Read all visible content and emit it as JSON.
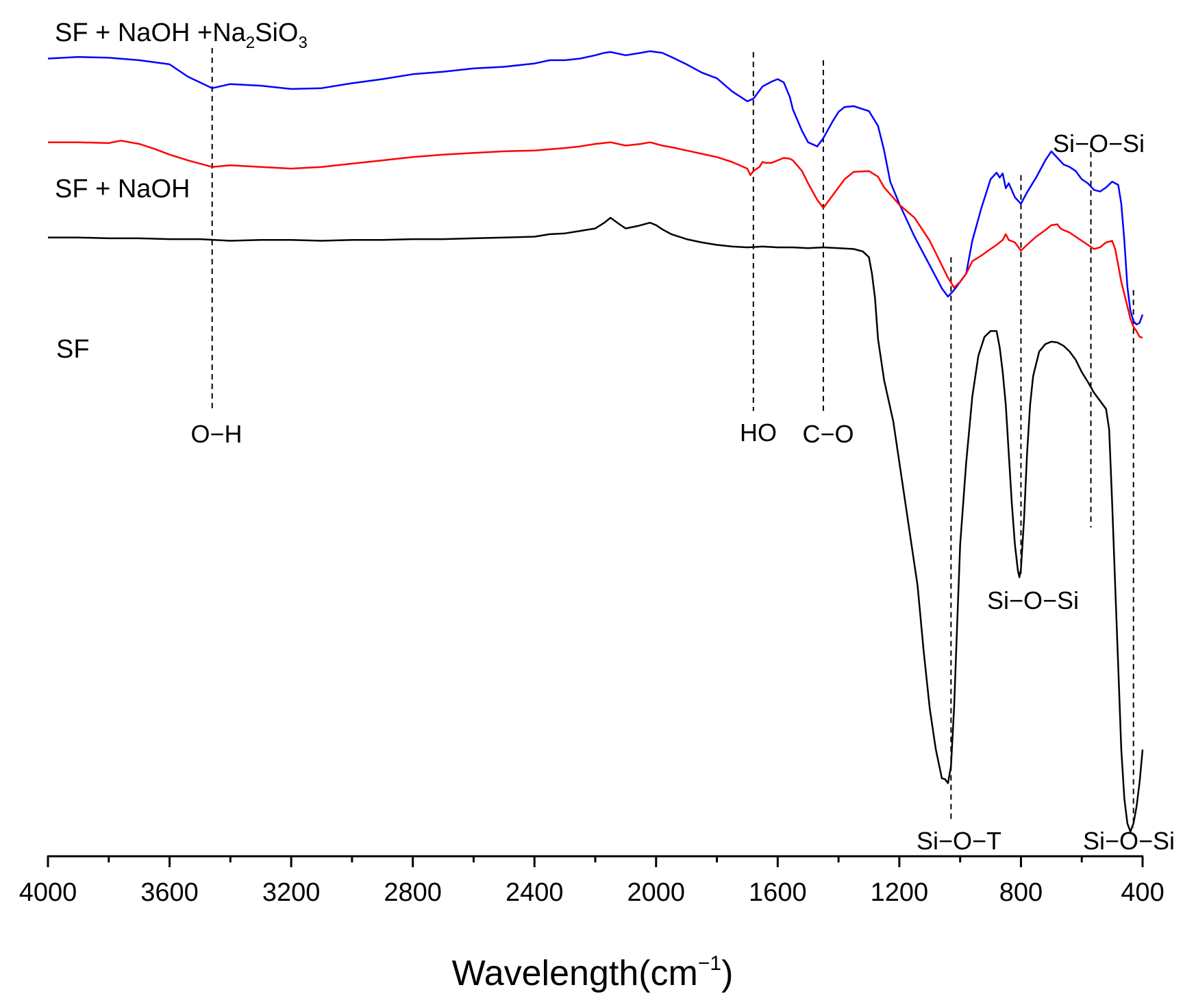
{
  "chart_data": {
    "type": "line",
    "title": "",
    "xlabel": "Wavelength(cm",
    "xlabel_superscript": "−1",
    "xlabel_close": ")",
    "ylabel": "",
    "xlim": [
      4000,
      400
    ],
    "x_reversed": true,
    "ylim": [
      -13,
      88
    ],
    "y_axis_shown": false,
    "grid": false,
    "xticks": [
      4000,
      3600,
      3200,
      2800,
      2400,
      2000,
      1600,
      1200,
      800,
      400
    ],
    "xtick_labels": [
      "4000",
      "3600",
      "3200",
      "2800",
      "2400",
      "2000",
      "1600",
      "1200",
      "800",
      "400"
    ],
    "minor_xticks": [
      3800,
      3400,
      3000,
      2600,
      2200,
      1800,
      1400,
      1000,
      600
    ],
    "series": [
      {
        "name": "SF + NaOH +Na2SiO3",
        "label_parts": [
          "SF + NaOH +Na",
          "2",
          "SiO",
          "3"
        ],
        "color": "#0000ff",
        "x": [
          4000,
          3900,
          3800,
          3700,
          3600,
          3540,
          3460,
          3400,
          3300,
          3200,
          3100,
          3000,
          2900,
          2800,
          2700,
          2600,
          2500,
          2400,
          2350,
          2300,
          2250,
          2200,
          2170,
          2150,
          2100,
          2050,
          2020,
          1980,
          1950,
          1900,
          1850,
          1800,
          1750,
          1700,
          1680,
          1650,
          1620,
          1600,
          1580,
          1560,
          1550,
          1520,
          1500,
          1470,
          1450,
          1420,
          1400,
          1380,
          1350,
          1300,
          1270,
          1250,
          1230,
          1200,
          1150,
          1100,
          1060,
          1040,
          1020,
          1000,
          980,
          960,
          930,
          900,
          880,
          870,
          860,
          850,
          840,
          820,
          800,
          780,
          750,
          720,
          700,
          680,
          660,
          640,
          620,
          600,
          580,
          560,
          540,
          520,
          500,
          480,
          470,
          460,
          450,
          440,
          430,
          420,
          410,
          400
        ],
        "y": [
          84.2,
          84.4,
          84.3,
          84.0,
          83.5,
          82.0,
          80.6,
          81.1,
          80.9,
          80.5,
          80.6,
          81.2,
          81.7,
          82.3,
          82.6,
          83.0,
          83.2,
          83.6,
          84.0,
          84.0,
          84.2,
          84.6,
          84.9,
          85.0,
          84.6,
          84.9,
          85.1,
          84.9,
          84.4,
          83.5,
          82.5,
          81.8,
          80.2,
          79.0,
          79.3,
          80.8,
          81.4,
          81.7,
          81.3,
          79.5,
          78.0,
          75.4,
          74.0,
          73.5,
          74.5,
          76.5,
          77.7,
          78.3,
          78.4,
          77.8,
          76.0,
          73.0,
          69.2,
          66.5,
          62.5,
          59.0,
          56.2,
          55.2,
          56.0,
          57.0,
          58.0,
          62.0,
          66.0,
          69.5,
          70.3,
          69.7,
          70.2,
          68.4,
          69.0,
          67.3,
          66.5,
          67.9,
          69.7,
          71.8,
          72.9,
          72.1,
          71.3,
          71.0,
          70.5,
          69.5,
          69.0,
          68.2,
          68.0,
          68.5,
          69.2,
          68.8,
          66.5,
          62.0,
          56.4,
          53.5,
          52.2,
          51.8,
          52.0,
          53.0
        ]
      },
      {
        "name": "SF + NaOH",
        "label_parts": [
          "SF + NaOH"
        ],
        "color": "#ff0000",
        "x": [
          4000,
          3900,
          3800,
          3760,
          3700,
          3650,
          3600,
          3540,
          3460,
          3400,
          3300,
          3200,
          3100,
          3000,
          2900,
          2800,
          2700,
          2600,
          2500,
          2400,
          2300,
          2250,
          2200,
          2150,
          2100,
          2050,
          2020,
          1980,
          1950,
          1900,
          1850,
          1800,
          1750,
          1700,
          1690,
          1680,
          1660,
          1650,
          1640,
          1620,
          1600,
          1580,
          1560,
          1550,
          1520,
          1500,
          1470,
          1450,
          1420,
          1400,
          1380,
          1350,
          1300,
          1270,
          1250,
          1200,
          1150,
          1100,
          1060,
          1040,
          1020,
          1000,
          980,
          960,
          930,
          900,
          880,
          860,
          850,
          840,
          820,
          800,
          780,
          750,
          720,
          700,
          680,
          670,
          660,
          640,
          620,
          600,
          580,
          560,
          540,
          520,
          500,
          490,
          480,
          470,
          460,
          450,
          440,
          430,
          420,
          410,
          400
        ],
        "y": [
          74.0,
          74.0,
          73.9,
          74.2,
          73.8,
          73.2,
          72.5,
          71.8,
          71.0,
          71.2,
          71.0,
          70.8,
          71.0,
          71.4,
          71.8,
          72.2,
          72.5,
          72.7,
          72.9,
          73.0,
          73.3,
          73.5,
          73.8,
          74.0,
          73.6,
          73.8,
          74.0,
          73.6,
          73.4,
          73.0,
          72.6,
          72.2,
          71.6,
          70.8,
          70.0,
          70.5,
          71.0,
          71.6,
          71.5,
          71.5,
          71.8,
          72.1,
          72.0,
          71.8,
          70.5,
          69.0,
          67.0,
          66.0,
          67.5,
          68.5,
          69.5,
          70.4,
          70.5,
          69.8,
          68.5,
          66.4,
          64.8,
          62.0,
          59.0,
          57.5,
          56.3,
          57.0,
          58.0,
          59.5,
          60.2,
          61.0,
          61.5,
          62.1,
          62.8,
          62.1,
          61.8,
          60.8,
          61.5,
          62.5,
          63.3,
          63.9,
          64.0,
          63.5,
          63.3,
          63.0,
          62.5,
          62.0,
          61.5,
          61.0,
          61.2,
          61.8,
          62.0,
          61.0,
          59.0,
          57.0,
          55.5,
          54.0,
          52.5,
          51.5,
          51.0,
          50.3,
          50.2
        ]
      },
      {
        "name": "SF",
        "label_parts": [
          "SF"
        ],
        "color": "#000000",
        "x": [
          4000,
          3900,
          3800,
          3700,
          3600,
          3500,
          3400,
          3300,
          3200,
          3100,
          3000,
          2900,
          2800,
          2700,
          2600,
          2500,
          2400,
          2350,
          2300,
          2250,
          2200,
          2170,
          2150,
          2120,
          2100,
          2060,
          2020,
          2000,
          1980,
          1950,
          1900,
          1850,
          1800,
          1750,
          1700,
          1650,
          1600,
          1550,
          1500,
          1450,
          1400,
          1350,
          1320,
          1300,
          1290,
          1280,
          1270,
          1250,
          1220,
          1200,
          1180,
          1160,
          1140,
          1120,
          1100,
          1080,
          1060,
          1050,
          1040,
          1030,
          1020,
          1010,
          1000,
          980,
          960,
          940,
          920,
          900,
          880,
          870,
          860,
          850,
          840,
          830,
          820,
          810,
          805,
          800,
          790,
          780,
          770,
          760,
          750,
          740,
          720,
          700,
          680,
          660,
          640,
          620,
          600,
          580,
          560,
          540,
          520,
          510,
          500,
          490,
          480,
          470,
          460,
          450,
          440,
          430,
          420,
          410,
          400
        ],
        "y": [
          62.4,
          62.4,
          62.3,
          62.3,
          62.2,
          62.2,
          62.0,
          62.1,
          62.1,
          62.0,
          62.1,
          62.1,
          62.2,
          62.2,
          62.3,
          62.4,
          62.5,
          62.8,
          62.9,
          63.2,
          63.5,
          64.2,
          64.8,
          64.0,
          63.5,
          63.8,
          64.2,
          63.9,
          63.4,
          62.8,
          62.2,
          61.8,
          61.5,
          61.3,
          61.2,
          61.3,
          61.2,
          61.2,
          61.1,
          61.2,
          61.1,
          61.0,
          60.7,
          60.0,
          58.0,
          55.0,
          50.0,
          45.0,
          40.0,
          35.0,
          30.0,
          25.0,
          20.0,
          12.0,
          5.0,
          0.0,
          -3.5,
          -3.6,
          -4.1,
          -2.0,
          5.0,
          15.0,
          25.0,
          35.0,
          43.0,
          48.0,
          50.3,
          51.0,
          51.0,
          49.0,
          46.0,
          42.0,
          36.0,
          30.0,
          25.0,
          21.8,
          21.0,
          22.0,
          28.0,
          36.0,
          42.0,
          45.5,
          47.0,
          48.5,
          49.4,
          49.7,
          49.6,
          49.2,
          48.5,
          47.5,
          46.0,
          44.8,
          43.5,
          42.5,
          41.5,
          39.0,
          30.0,
          20.0,
          10.0,
          0.0,
          -6.0,
          -9.0,
          -10.0,
          -9.0,
          -7.0,
          -4.0,
          0.0
        ]
      }
    ],
    "annotations": [
      {
        "text": "O−H",
        "x": 3460
      },
      {
        "text": "HO",
        "x": 1680
      },
      {
        "text": "C−O",
        "x": 1450
      },
      {
        "text": "Si−O−Si",
        "x": 570
      },
      {
        "text": "Si−O−T",
        "x": 1030
      },
      {
        "text": "Si−O−Si",
        "x": 800
      },
      {
        "text": "Si−O−Si",
        "x": 430
      }
    ],
    "reference_lines": [
      {
        "x": 3460
      },
      {
        "x": 1680
      },
      {
        "x": 1450
      },
      {
        "x": 1030
      },
      {
        "x": 800
      },
      {
        "x": 570
      },
      {
        "x": 430
      }
    ]
  }
}
